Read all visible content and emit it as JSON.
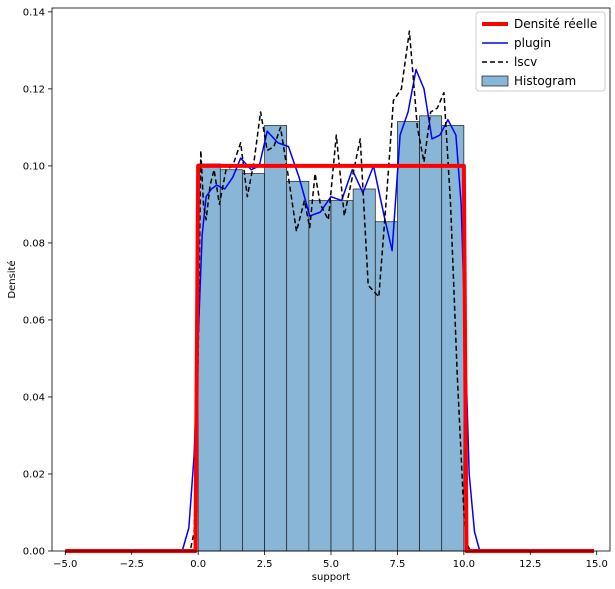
{
  "chart_data": {
    "type": "histogram-with-lines",
    "title": "",
    "xlabel": "support",
    "ylabel": "Densité",
    "xlim": [
      -5.5,
      15.5
    ],
    "ylim": [
      0,
      0.141
    ],
    "xticks": [
      -5.0,
      -2.5,
      0.0,
      2.5,
      5.0,
      7.5,
      10.0,
      12.5,
      15.0
    ],
    "xtick_labels": [
      "−5.0",
      "−2.5",
      "0.0",
      "2.5",
      "5.0",
      "7.5",
      "10.0",
      "12.5",
      "15.0"
    ],
    "yticks": [
      0.0,
      0.02,
      0.04,
      0.06,
      0.08,
      0.1,
      0.12,
      0.14
    ],
    "ytick_labels": [
      "0.00",
      "0.02",
      "0.04",
      "0.06",
      "0.08",
      "0.10",
      "0.12",
      "0.14"
    ],
    "grid": false,
    "legend_position": "top-right",
    "colors": {
      "true_density": "#ff0000",
      "plugin": "#0000ff",
      "lscv": "#000000",
      "histogram_fill": "#89b6d7",
      "histogram_edge": "#1a1a1a"
    },
    "histogram": {
      "name": "Histogram",
      "bin_edges": [
        0.0,
        0.833,
        1.667,
        2.5,
        3.333,
        4.167,
        5.0,
        5.833,
        6.667,
        7.5,
        8.333,
        9.167,
        10.0
      ],
      "values": [
        0.1005,
        0.099,
        0.098,
        0.1105,
        0.096,
        0.091,
        0.091,
        0.094,
        0.0855,
        0.1115,
        0.113,
        0.1105
      ]
    },
    "series": [
      {
        "name": "Densité réelle",
        "style": "solid-thick",
        "x": [
          -5.0,
          -0.1,
          0.0,
          10.0,
          10.1,
          14.9
        ],
        "y": [
          0.0,
          0.0,
          0.1,
          0.1,
          0.0,
          0.0
        ]
      },
      {
        "name": "plugin",
        "style": "solid",
        "x": [
          -5.0,
          -0.6,
          -0.35,
          -0.15,
          0.0,
          0.15,
          0.3,
          0.5,
          0.7,
          1.0,
          1.3,
          1.6,
          2.0,
          2.3,
          2.6,
          3.0,
          3.4,
          3.8,
          4.2,
          4.6,
          5.0,
          5.4,
          5.8,
          6.2,
          6.6,
          7.0,
          7.3,
          7.6,
          7.9,
          8.2,
          8.5,
          8.8,
          9.1,
          9.4,
          9.7,
          9.9,
          10.05,
          10.2,
          10.4,
          10.6,
          14.9
        ],
        "y": [
          0.0,
          0.0,
          0.006,
          0.025,
          0.055,
          0.082,
          0.092,
          0.094,
          0.095,
          0.094,
          0.097,
          0.102,
          0.099,
          0.1,
          0.109,
          0.106,
          0.105,
          0.097,
          0.087,
          0.088,
          0.092,
          0.091,
          0.099,
          0.093,
          0.1,
          0.087,
          0.078,
          0.108,
          0.114,
          0.125,
          0.12,
          0.107,
          0.108,
          0.112,
          0.108,
          0.09,
          0.055,
          0.02,
          0.005,
          0.0,
          0.0
        ]
      },
      {
        "name": "lscv",
        "style": "dashed",
        "x": [
          -5.0,
          -0.3,
          -0.15,
          0.0,
          0.1,
          0.2,
          0.3,
          0.45,
          0.6,
          0.8,
          1.05,
          1.3,
          1.6,
          1.85,
          2.1,
          2.35,
          2.6,
          2.85,
          3.1,
          3.4,
          3.7,
          4.0,
          4.2,
          4.4,
          4.6,
          4.9,
          5.2,
          5.5,
          5.8,
          6.1,
          6.4,
          6.8,
          7.1,
          7.35,
          7.65,
          7.95,
          8.25,
          8.5,
          8.75,
          9.0,
          9.25,
          9.5,
          9.75,
          10.0,
          10.1,
          10.25,
          10.4,
          14.9
        ],
        "y": [
          0.0,
          0.0,
          0.005,
          0.05,
          0.104,
          0.09,
          0.086,
          0.095,
          0.099,
          0.09,
          0.099,
          0.1,
          0.106,
          0.092,
          0.101,
          0.114,
          0.104,
          0.105,
          0.11,
          0.097,
          0.083,
          0.091,
          0.084,
          0.098,
          0.09,
          0.086,
          0.108,
          0.087,
          0.097,
          0.107,
          0.069,
          0.066,
          0.093,
          0.117,
          0.12,
          0.135,
          0.11,
          0.101,
          0.114,
          0.115,
          0.119,
          0.09,
          0.046,
          0.01,
          0.002,
          0.0,
          0.0,
          0.0
        ]
      }
    ],
    "legend": [
      {
        "label": "Densité réelle",
        "key": "true_density"
      },
      {
        "label": "plugin",
        "key": "plugin"
      },
      {
        "label": "lscv",
        "key": "lscv"
      },
      {
        "label": "Histogram",
        "key": "histogram"
      }
    ]
  }
}
